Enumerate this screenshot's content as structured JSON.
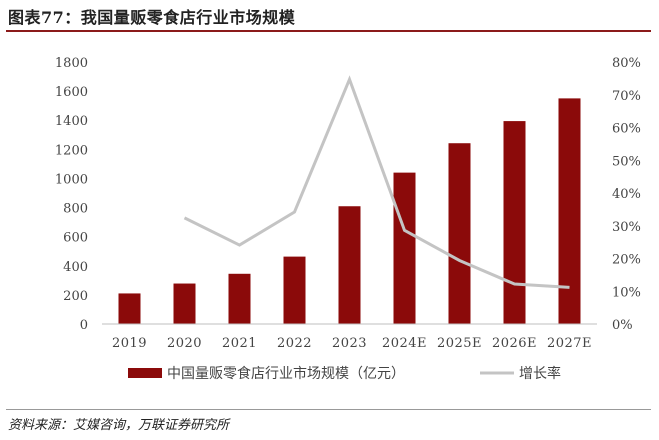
{
  "title": "图表77：我国量贩零食店行业市场规模",
  "source": "资料来源：艾媒咨询，万联证券研究所",
  "colors": {
    "bar": "#8b0a0a",
    "line": "#c4c4c4",
    "rule": "#8b1a1a"
  },
  "chart_data": {
    "type": "bar",
    "categories": [
      "2019",
      "2020",
      "2021",
      "2022",
      "2023",
      "2024E",
      "2025E",
      "2026E",
      "2027E"
    ],
    "series": [
      {
        "name": "中国量贩零食店行业市场规模（亿元）",
        "type": "bar",
        "axis": "left",
        "values": [
          210,
          278,
          345,
          463,
          809,
          1040,
          1242,
          1394,
          1550
        ]
      },
      {
        "name": "增长率",
        "type": "line",
        "axis": "right",
        "values": [
          null,
          32.4,
          24.1,
          34.2,
          74.7,
          28.6,
          19.4,
          12.2,
          11.2
        ]
      }
    ],
    "ylim": [
      0,
      1800
    ],
    "yticks": [
      "0",
      "200",
      "400",
      "600",
      "800",
      "1000",
      "1200",
      "1400",
      "1600",
      "1800"
    ],
    "y2lim": [
      0,
      80
    ],
    "y2ticks": [
      "0%",
      "10%",
      "20%",
      "30%",
      "40%",
      "50%",
      "60%",
      "70%",
      "80%"
    ],
    "legend_position": "bottom",
    "grid": false
  }
}
